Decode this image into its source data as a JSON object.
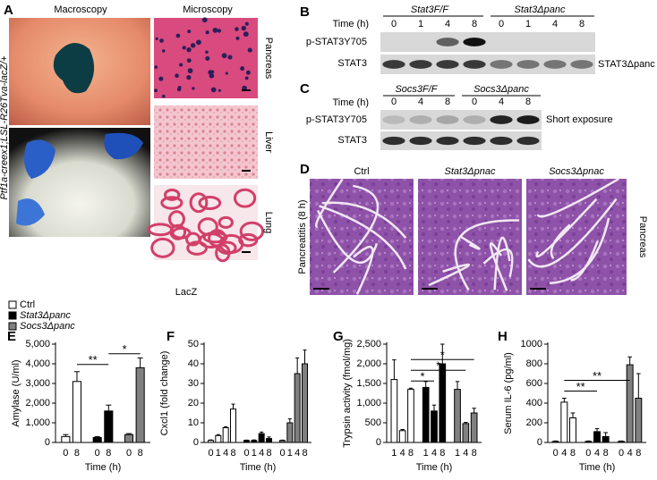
{
  "panels": {
    "A": {
      "letter": "A",
      "macroscopy": "Macroscopy",
      "microscopy": "Microscopy",
      "tissues": [
        "Pancreas",
        "Liver",
        "Lung"
      ],
      "stain": "LacZ",
      "genotype": "Ptf1a-creex1;LSL-R26Tva-lacZ/+"
    },
    "B": {
      "letter": "B",
      "time_label": "Time (h)",
      "groups": [
        "Stat3F/F",
        "Stat3Δpanc"
      ],
      "times": [
        "0",
        "1",
        "4",
        "8"
      ],
      "rows": [
        "p-STAT3Y705",
        "STAT3"
      ],
      "side_label": "STAT3Δpanc"
    },
    "C": {
      "letter": "C",
      "time_label": "Time (h)",
      "groups": [
        "Socs3F/F",
        "Socs3Δpanc"
      ],
      "times": [
        "0",
        "4",
        "8"
      ],
      "rows": [
        "p-STAT3Y705",
        "STAT3"
      ],
      "side_label": "Short exposure"
    },
    "D": {
      "letter": "D",
      "columns": [
        "Ctrl",
        "Stat3Δpnac",
        "Socs3Δpnac"
      ],
      "row_label": "Pancreatitis (8 h)",
      "side_label": "Pancreas"
    }
  },
  "chart_data": [
    {
      "type": "bar",
      "panel": "E",
      "y_label": "Amylase (U/ml)",
      "x_label": "Time (h)",
      "categories": [
        "0",
        "8"
      ],
      "series": [
        {
          "name": "Ctrl",
          "color": "#ffffff",
          "values": [
            300,
            3100
          ],
          "errors": [
            100,
            500
          ]
        },
        {
          "name": "Stat3Δpanc",
          "color": "#000000",
          "values": [
            250,
            1600
          ],
          "errors": [
            50,
            300
          ]
        },
        {
          "name": "Socs3Δpanc",
          "color": "#808080",
          "values": [
            400,
            3800
          ],
          "errors": [
            50,
            500
          ]
        }
      ],
      "ylim": [
        0,
        5000
      ],
      "yticks": [
        0,
        {
          "value": 1000,
          "label": "1,000"
        },
        {
          "value": 2000,
          "label": "2,000"
        },
        {
          "value": 3000,
          "label": "3,000"
        },
        {
          "value": 4000,
          "label": "4,000"
        },
        {
          "value": 5000,
          "label": "5,000"
        }
      ],
      "significance": [
        {
          "label": "**",
          "from": [
            0,
            1
          ],
          "to": [
            1,
            1
          ]
        },
        {
          "label": "*",
          "from": [
            1,
            1
          ],
          "to": [
            2,
            1
          ]
        }
      ]
    },
    {
      "type": "bar",
      "panel": "F",
      "y_label": "Cxcl1 (fold change)",
      "x_label": "Time (h)",
      "categories": [
        "0",
        "1",
        "4",
        "8"
      ],
      "series": [
        {
          "color": "#ffffff",
          "values": [
            1,
            3.5,
            7.5,
            17
          ],
          "errors": [
            0.3,
            0.5,
            0.5,
            2.5
          ]
        },
        {
          "color": "#000000",
          "values": [
            1,
            1,
            4.5,
            2
          ],
          "errors": [
            0.2,
            0.3,
            0.8,
            0.8
          ]
        },
        {
          "color": "#808080",
          "values": [
            1,
            10,
            35,
            40
          ],
          "errors": [
            0.2,
            2,
            8,
            7
          ]
        }
      ],
      "ylim": [
        0,
        50
      ],
      "yticks": [
        0,
        10,
        20,
        30,
        40,
        50
      ],
      "significance": []
    },
    {
      "type": "bar",
      "panel": "G",
      "y_label": "Trypsin activity (fmol/mg)",
      "x_label": "Time (h)",
      "categories": [
        "1",
        "4",
        "8"
      ],
      "series": [
        {
          "color": "#ffffff",
          "values": [
            1600,
            300,
            1350
          ],
          "errors": [
            500,
            30,
            30
          ]
        },
        {
          "color": "#000000",
          "values": [
            1400,
            800,
            2000
          ],
          "errors": [
            150,
            150,
            500
          ]
        },
        {
          "color": "#808080",
          "values": [
            1350,
            480,
            750
          ],
          "errors": [
            200,
            30,
            120
          ]
        }
      ],
      "ylim": [
        0,
        2500
      ],
      "yticks": [
        0,
        500,
        {
          "value": 1000,
          "label": "1,000"
        },
        {
          "value": 1500,
          "label": "1,500"
        },
        {
          "value": 2000,
          "label": "2,000"
        },
        {
          "value": 2500,
          "label": "2,500"
        }
      ],
      "significance": [
        {
          "label": "*",
          "from": [
            0,
            2
          ],
          "to": [
            1,
            1
          ]
        },
        {
          "label": "*",
          "from": [
            0,
            2
          ],
          "to": [
            2,
            1
          ]
        },
        {
          "label": "*",
          "from": [
            0,
            2
          ],
          "to": [
            2,
            2
          ]
        }
      ]
    },
    {
      "type": "bar",
      "panel": "H",
      "y_label": "Serum IL-6 (pg/ml)",
      "x_label": "Time (h)",
      "categories": [
        "0",
        "4",
        "8"
      ],
      "series": [
        {
          "color": "#ffffff",
          "values": [
            10,
            410,
            250
          ],
          "errors": [
            5,
            40,
            50
          ]
        },
        {
          "color": "#000000",
          "values": [
            10,
            110,
            60
          ],
          "errors": [
            5,
            30,
            40
          ]
        },
        {
          "color": "#808080",
          "values": [
            10,
            790,
            450
          ],
          "errors": [
            5,
            80,
            250
          ]
        }
      ],
      "ylim": [
        0,
        1000
      ],
      "yticks": [
        0,
        200,
        400,
        600,
        800,
        1000
      ],
      "significance": [
        {
          "label": "**",
          "from": [
            0,
            1
          ],
          "to": [
            1,
            1
          ]
        },
        {
          "label": "**",
          "from": [
            0,
            1
          ],
          "to": [
            2,
            1
          ]
        }
      ]
    }
  ]
}
